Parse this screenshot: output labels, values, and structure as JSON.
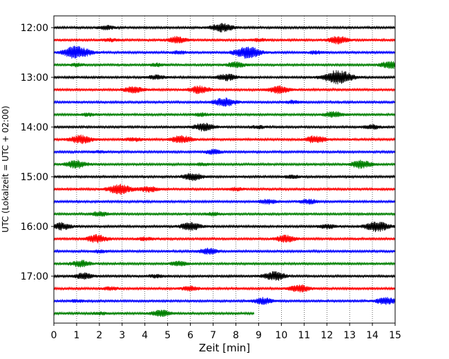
{
  "chart_data": {
    "type": "line",
    "title": "",
    "xlabel": "Zeit  [min]",
    "ylabel": "UTC (Lokalzeit = UTC + 02:00)",
    "xlim": [
      0,
      15
    ],
    "x_ticks": [
      "0",
      "1",
      "2",
      "3",
      "4",
      "5",
      "6",
      "7",
      "8",
      "9",
      "10",
      "11",
      "12",
      "13",
      "14",
      "15"
    ],
    "y_tick_labels": [
      "12:00",
      "13:00",
      "14:00",
      "15:00",
      "16:00",
      "17:00"
    ],
    "grid": {
      "x": true,
      "y": false
    },
    "trace_colors": [
      "#000000",
      "#ff0000",
      "#0000ff",
      "#008000"
    ],
    "traces": [
      {
        "start": "12:00",
        "end_min": 15,
        "bursts": [
          [
            7.4,
            0.6
          ],
          [
            2.3,
            0.25
          ]
        ]
      },
      {
        "start": "12:15",
        "end_min": 15,
        "bursts": [
          [
            5.4,
            0.45
          ],
          [
            12.5,
            0.5
          ],
          [
            2.5,
            0.2
          ],
          [
            9.0,
            0.2
          ]
        ]
      },
      {
        "start": "12:30",
        "end_min": 15,
        "bursts": [
          [
            1.0,
            0.9
          ],
          [
            8.5,
            0.85
          ],
          [
            5.5,
            0.2
          ],
          [
            11.5,
            0.2
          ]
        ]
      },
      {
        "start": "12:45",
        "end_min": 15,
        "bursts": [
          [
            8.0,
            0.4
          ],
          [
            14.8,
            0.5
          ],
          [
            1.0,
            0.2
          ],
          [
            4.5,
            0.2
          ]
        ]
      },
      {
        "start": "13:00",
        "end_min": 15,
        "bursts": [
          [
            12.5,
            1.0
          ],
          [
            7.6,
            0.45
          ],
          [
            4.5,
            0.3
          ]
        ]
      },
      {
        "start": "13:15",
        "end_min": 15,
        "bursts": [
          [
            3.5,
            0.45
          ],
          [
            6.4,
            0.5
          ],
          [
            9.9,
            0.5
          ]
        ]
      },
      {
        "start": "13:30",
        "end_min": 15,
        "bursts": [
          [
            7.5,
            0.6
          ],
          [
            10.5,
            0.2
          ]
        ]
      },
      {
        "start": "13:45",
        "end_min": 15,
        "bursts": [
          [
            12.3,
            0.4
          ],
          [
            6.5,
            0.2
          ],
          [
            1.5,
            0.2
          ]
        ]
      },
      {
        "start": "14:00",
        "end_min": 15,
        "bursts": [
          [
            6.6,
            0.55
          ],
          [
            14.0,
            0.3
          ],
          [
            9.0,
            0.2
          ]
        ]
      },
      {
        "start": "14:15",
        "end_min": 15,
        "bursts": [
          [
            1.2,
            0.6
          ],
          [
            5.6,
            0.55
          ],
          [
            11.5,
            0.5
          ],
          [
            3.5,
            0.25
          ]
        ]
      },
      {
        "start": "14:30",
        "end_min": 15,
        "bursts": [
          [
            7.0,
            0.3
          ],
          [
            2.0,
            0.15
          ]
        ]
      },
      {
        "start": "14:45",
        "end_min": 15,
        "bursts": [
          [
            1.0,
            0.55
          ],
          [
            13.5,
            0.55
          ],
          [
            6.5,
            0.15
          ]
        ]
      },
      {
        "start": "15:00",
        "end_min": 15,
        "bursts": [
          [
            6.1,
            0.5
          ],
          [
            10.5,
            0.2
          ]
        ]
      },
      {
        "start": "15:15",
        "end_min": 15,
        "bursts": [
          [
            2.9,
            0.7
          ],
          [
            4.2,
            0.4
          ],
          [
            8.0,
            0.2
          ]
        ]
      },
      {
        "start": "15:30",
        "end_min": 15,
        "bursts": [
          [
            9.4,
            0.3
          ],
          [
            11.2,
            0.3
          ]
        ]
      },
      {
        "start": "15:45",
        "end_min": 15,
        "bursts": [
          [
            2.0,
            0.3
          ],
          [
            7.0,
            0.2
          ]
        ]
      },
      {
        "start": "16:00",
        "end_min": 15,
        "bursts": [
          [
            14.2,
            0.7
          ],
          [
            6.0,
            0.55
          ],
          [
            0.3,
            0.5
          ],
          [
            12.0,
            0.3
          ]
        ]
      },
      {
        "start": "16:15",
        "end_min": 15,
        "bursts": [
          [
            1.9,
            0.55
          ],
          [
            10.2,
            0.5
          ],
          [
            4.0,
            0.2
          ]
        ]
      },
      {
        "start": "16:30",
        "end_min": 15,
        "bursts": [
          [
            6.8,
            0.4
          ],
          [
            2.0,
            0.2
          ]
        ]
      },
      {
        "start": "16:45",
        "end_min": 15,
        "bursts": [
          [
            1.2,
            0.45
          ],
          [
            5.5,
            0.3
          ]
        ]
      },
      {
        "start": "17:00",
        "end_min": 15,
        "bursts": [
          [
            9.7,
            0.6
          ],
          [
            1.3,
            0.4
          ],
          [
            4.5,
            0.2
          ]
        ]
      },
      {
        "start": "17:15",
        "end_min": 15,
        "bursts": [
          [
            10.8,
            0.5
          ],
          [
            6.0,
            0.3
          ],
          [
            2.5,
            0.2
          ]
        ]
      },
      {
        "start": "17:30",
        "end_min": 15,
        "bursts": [
          [
            14.6,
            0.5
          ],
          [
            9.2,
            0.45
          ],
          [
            1.0,
            0.15
          ]
        ]
      },
      {
        "start": "17:45",
        "end_min": 8.8,
        "bursts": [
          [
            4.7,
            0.45
          ],
          [
            2.0,
            0.15
          ]
        ]
      }
    ]
  }
}
